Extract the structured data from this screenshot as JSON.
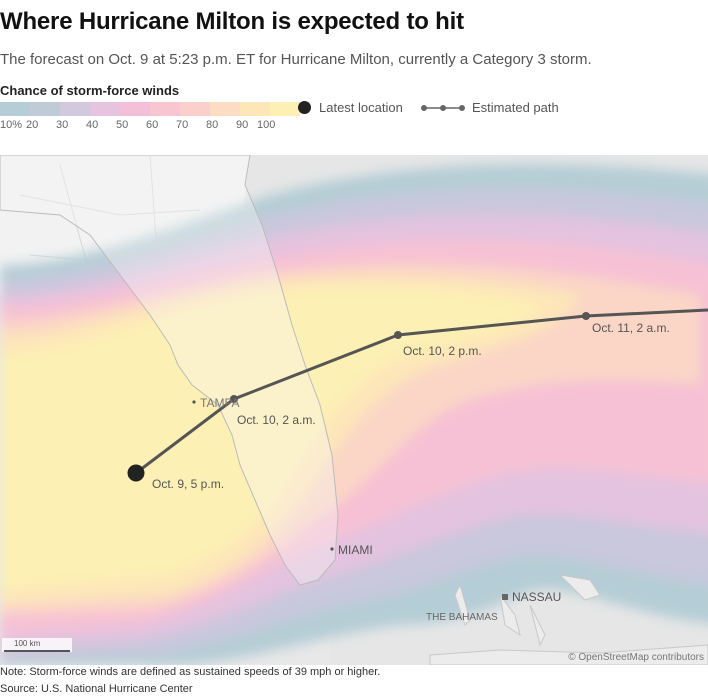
{
  "title": "Where Hurricane Milton is expected to hit",
  "subtitle": "The forecast on Oct. 9 at 5:23 p.m. ET for Hurricane Milton, currently a Category 3 storm.",
  "legend": {
    "title": "Chance of storm-force winds",
    "colors": [
      "#b5cdd6",
      "#c0cbd8",
      "#d3c9df",
      "#e6c3df",
      "#f3bfd9",
      "#f8c5d0",
      "#fbcfcb",
      "#fcdcc3",
      "#fde7b9",
      "#fdf0b4"
    ],
    "ticks": [
      "10%",
      "20",
      "30",
      "40",
      "50",
      "60",
      "70",
      "80",
      "90",
      "100"
    ],
    "latest_location": "Latest location",
    "estimated_path": "Estimated path"
  },
  "path_points": [
    {
      "label": "Oct. 9, 5 p.m."
    },
    {
      "label": "Oct. 10, 2 a.m."
    },
    {
      "label": "Oct. 10, 2 p.m."
    },
    {
      "label": "Oct. 11, 2 a.m."
    }
  ],
  "places": {
    "tampa": "TAMPA",
    "miami": "MIAMI",
    "nassau": "NASSAU",
    "bahamas": "THE BAHAMAS"
  },
  "scale_label": "100 km",
  "attribution": "© OpenStreetMap contributors",
  "note": "Note: Storm-force winds are defined as sustained speeds of 39 mph or higher.",
  "source": "Source: U.S. National Hurricane Center"
}
